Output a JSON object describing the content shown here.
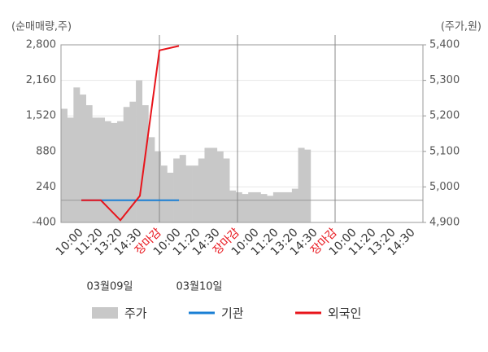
{
  "chart_data": {
    "type": "line",
    "y_axis_label": "(순매매량,주)",
    "y2_axis_label": "(주가,원)",
    "categories": [
      "10:00",
      "11:20",
      "13:20",
      "14:30",
      "장마감",
      "10:00",
      "11:20",
      "14:30",
      "장마감",
      "10:00",
      "11:20",
      "13:20",
      "14:30",
      "장마감",
      "10:00",
      "11:20",
      "13:20",
      "14:30"
    ],
    "date_labels": [
      "03월09일",
      "03월10일"
    ],
    "ylim": [
      -400,
      2800
    ],
    "yticks": [
      -400,
      240,
      880,
      {
        "value": 1520,
        "label": "1,520"
      },
      {
        "value": 2160,
        "label": "2,160"
      },
      {
        "value": 2800,
        "label": "2,800"
      }
    ],
    "y2lim": [
      4900,
      5400
    ],
    "y2ticks": [
      {
        "value": 4900,
        "label": "4,900"
      },
      {
        "value": 5000,
        "label": "5,000"
      },
      {
        "value": 5100,
        "label": "5,100"
      },
      {
        "value": 5200,
        "label": "5,200"
      },
      {
        "value": 5300,
        "label": "5,300"
      },
      {
        "value": 5400,
        "label": "5,400"
      }
    ],
    "grid": true,
    "price_series": {
      "name": "주가",
      "color": "#c8c8c8",
      "axis": "y2",
      "values": [
        5220,
        5195,
        5280,
        5260,
        5230,
        5195,
        5195,
        5185,
        5180,
        5185,
        5225,
        5240,
        5300,
        5230,
        5140,
        5100,
        5060,
        5040,
        5080,
        5090,
        5060,
        5060,
        5080,
        5110,
        5110,
        5100,
        5080,
        4990,
        4985,
        4980,
        4985,
        4985,
        4980,
        4975,
        4985,
        4985,
        4985,
        4995,
        5110,
        5105,
        null,
        null,
        null,
        null,
        null,
        null,
        null,
        null,
        null,
        null,
        null,
        null,
        null,
        null,
        null,
        null,
        null,
        null
      ]
    },
    "series": [
      {
        "name": "기관",
        "color": "#1a7fd4",
        "values": [
          0,
          0,
          0,
          0,
          0,
          0,
          null,
          null,
          null,
          null,
          null,
          null,
          null,
          null,
          null,
          null,
          null,
          null
        ]
      },
      {
        "name": "외국인",
        "color": "#e8141b",
        "values": [
          0,
          0,
          -360,
          80,
          2700,
          2780,
          null,
          null,
          null,
          null,
          null,
          null,
          null,
          null,
          null,
          null,
          null,
          null
        ]
      }
    ]
  }
}
